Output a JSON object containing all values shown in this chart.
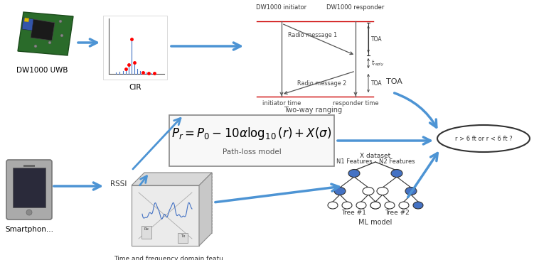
{
  "bg_color": "#ffffff",
  "arrow_color": "#4d94d4",
  "text_color": "#000000",
  "dark_text": "#333333",
  "uwb_label": "DW1000 UWB",
  "cir_label": "CIR",
  "rssi_label": "RSSI",
  "smartphone_label": "Smartphon...",
  "twr_label": "Two-way ranging",
  "pathloss_formula": "$P_r = P_0 - 10\\alpha\\log_{10}(r) + X(\\sigma)$",
  "pathloss_label": "Path-loss model",
  "ml_label": "ML model",
  "xdataset_label": "X dataset",
  "tfdomain_label": "Time and frequency domain featu...",
  "decision_label": "r > 6 ft or r < 6 ft ?",
  "dw1000_init_label": "DW1000 initiator",
  "dw1000_resp_label": "DW1000 responder",
  "radio1_label": "Radio message 1",
  "radio2_label": "Radio message 2",
  "init_time_label": "initiator time",
  "resp_time_label": "responder time",
  "treply_label": "$t_{reply}$",
  "n1_features_label": "N1 Features",
  "n2_features_label": "N2 Features",
  "tree1_label": "Tree #1",
  "tree2_label": "Tree #2",
  "toa_label": "TOA"
}
